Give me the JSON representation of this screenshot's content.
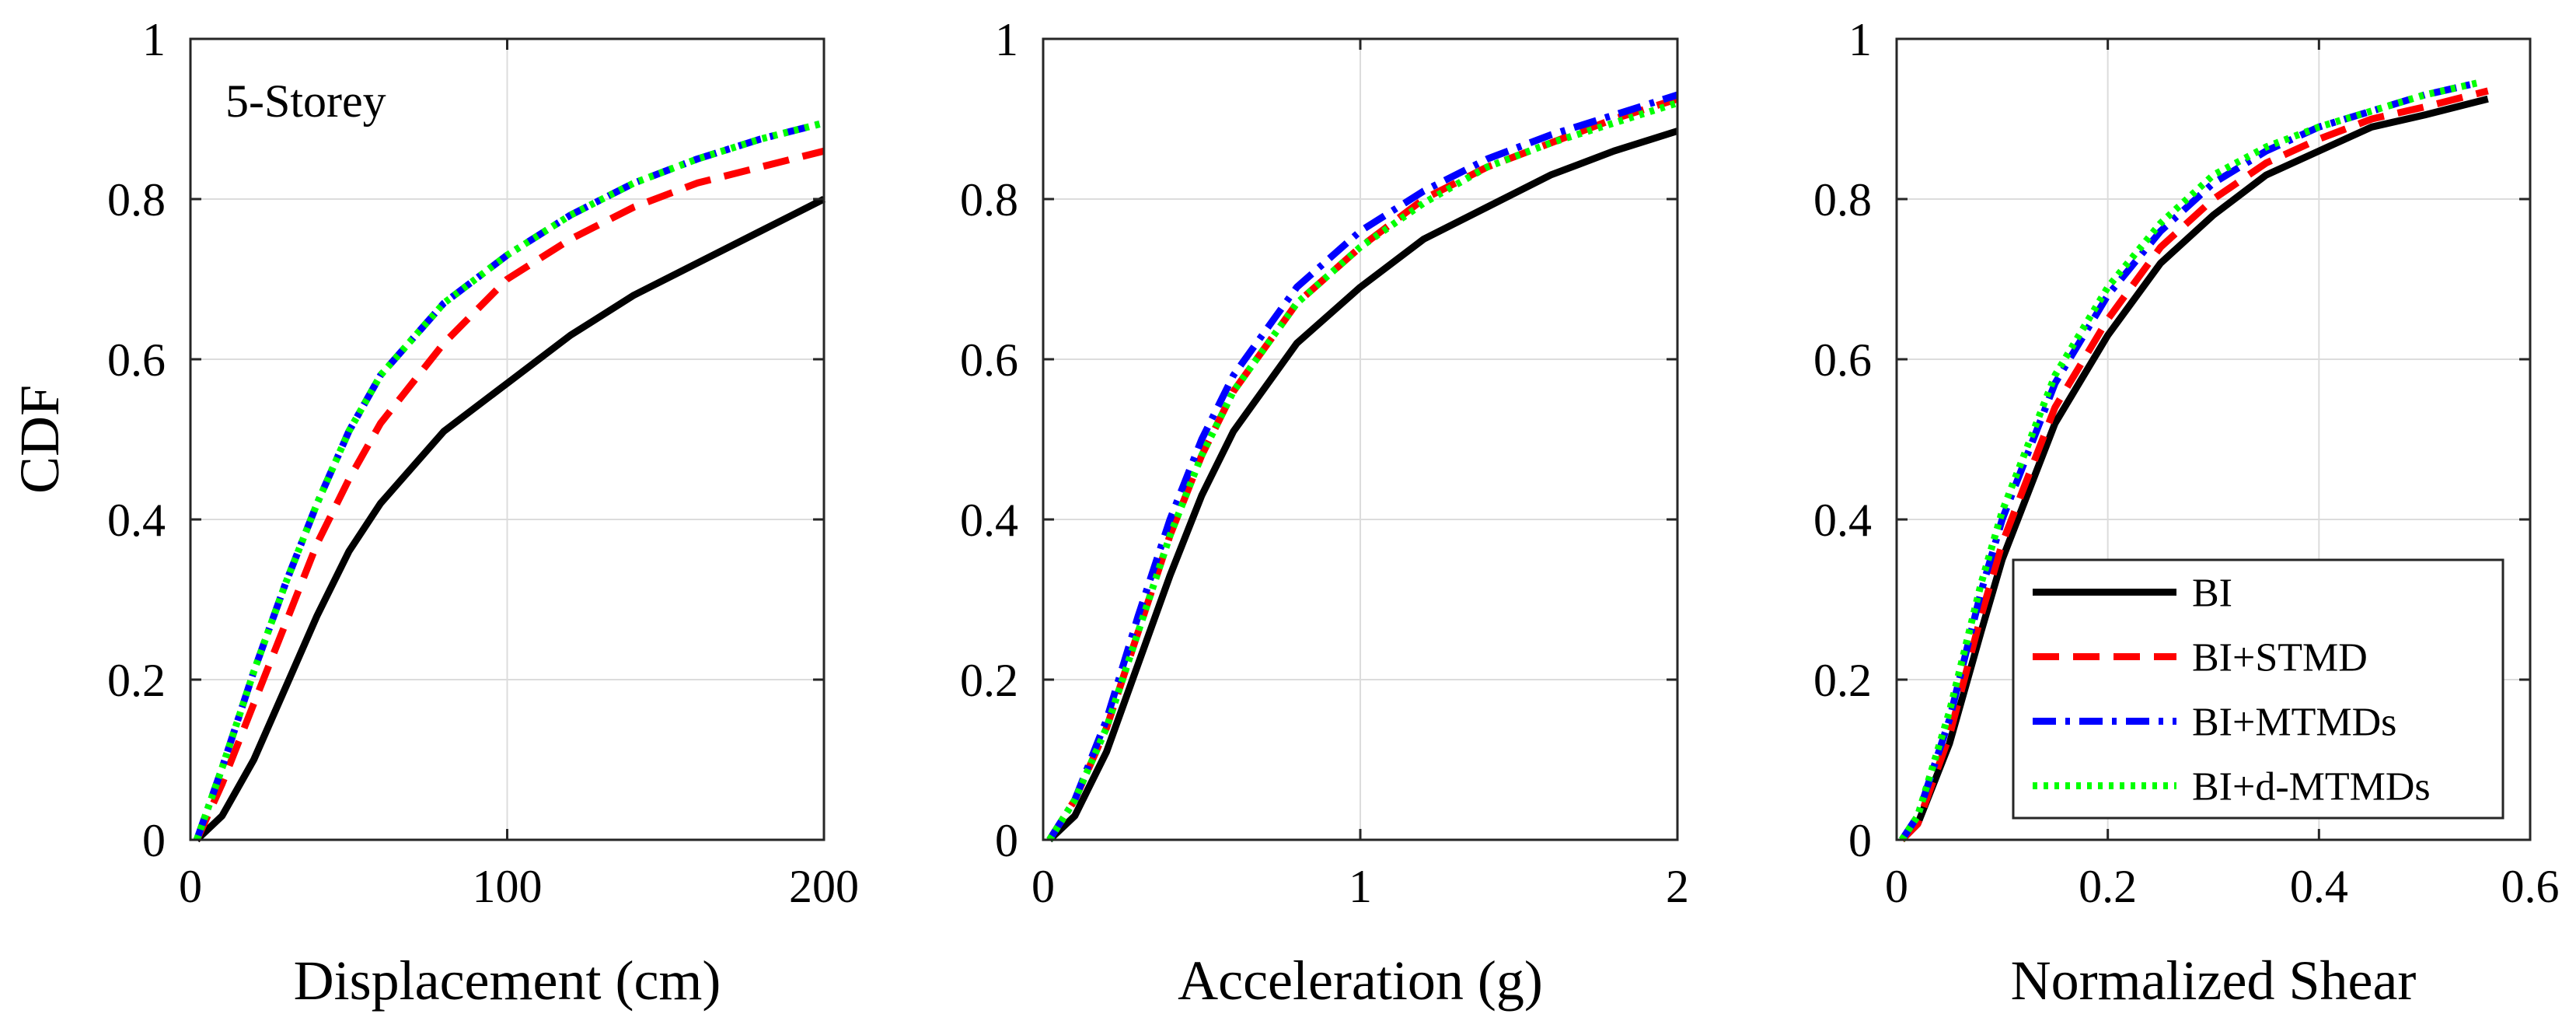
{
  "chart_data": [
    {
      "type": "line",
      "xlabel": "Displacement (cm)",
      "ylabel": "CDF",
      "annotation": "5-Storey",
      "xlim": [
        0,
        200
      ],
      "ylim": [
        0,
        1
      ],
      "xticks": [
        0,
        100,
        200
      ],
      "xtick_labels": [
        "0",
        "100",
        "200"
      ],
      "yticks": [
        0,
        0.2,
        0.4,
        0.6,
        0.8,
        1
      ],
      "ytick_labels": [
        "0",
        "0.2",
        "0.4",
        "0.6",
        "0.8",
        "1"
      ],
      "grid": true,
      "series": [
        {
          "name": "BI",
          "color": "#000000",
          "style": "solid",
          "x": [
            2,
            10,
            20,
            30,
            40,
            50,
            60,
            80,
            100,
            120,
            140,
            160,
            180,
            200
          ],
          "y": [
            0,
            0.03,
            0.1,
            0.19,
            0.28,
            0.36,
            0.42,
            0.51,
            0.57,
            0.63,
            0.68,
            0.72,
            0.76,
            0.8
          ]
        },
        {
          "name": "BI+STMD",
          "color": "#ff0000",
          "style": "dashed",
          "x": [
            2,
            10,
            20,
            30,
            40,
            50,
            60,
            80,
            100,
            120,
            140,
            160,
            180,
            200
          ],
          "y": [
            0,
            0.07,
            0.17,
            0.27,
            0.37,
            0.45,
            0.52,
            0.62,
            0.7,
            0.75,
            0.79,
            0.82,
            0.84,
            0.86
          ]
        },
        {
          "name": "BI+MTMDs",
          "color": "#0000ff",
          "style": "dashdot",
          "x": [
            2,
            10,
            20,
            30,
            40,
            50,
            60,
            80,
            100,
            120,
            140,
            160,
            180,
            200
          ],
          "y": [
            0,
            0.09,
            0.21,
            0.32,
            0.42,
            0.51,
            0.58,
            0.67,
            0.73,
            0.78,
            0.82,
            0.85,
            0.875,
            0.895
          ]
        },
        {
          "name": "BI+d-MTMDs",
          "color": "#00ff00",
          "style": "dotted",
          "x": [
            2,
            10,
            20,
            30,
            40,
            50,
            60,
            80,
            100,
            120,
            140,
            160,
            180,
            200
          ],
          "y": [
            0,
            0.09,
            0.21,
            0.32,
            0.42,
            0.51,
            0.58,
            0.67,
            0.73,
            0.78,
            0.82,
            0.85,
            0.875,
            0.895
          ]
        }
      ]
    },
    {
      "type": "line",
      "xlabel": "Acceleration (g)",
      "ylabel": "",
      "xlim": [
        0,
        2
      ],
      "ylim": [
        0,
        1
      ],
      "xticks": [
        0,
        1,
        2
      ],
      "xtick_labels": [
        "0",
        "1",
        "2"
      ],
      "yticks": [
        0,
        0.2,
        0.4,
        0.6,
        0.8,
        1
      ],
      "ytick_labels": [
        "0",
        "0.2",
        "0.4",
        "0.6",
        "0.8",
        "1"
      ],
      "grid": true,
      "series": [
        {
          "name": "BI",
          "color": "#000000",
          "style": "solid",
          "x": [
            0.02,
            0.1,
            0.2,
            0.3,
            0.4,
            0.5,
            0.6,
            0.8,
            1.0,
            1.2,
            1.4,
            1.6,
            1.8,
            2.0
          ],
          "y": [
            0,
            0.03,
            0.11,
            0.22,
            0.33,
            0.43,
            0.51,
            0.62,
            0.69,
            0.75,
            0.79,
            0.83,
            0.86,
            0.885
          ]
        },
        {
          "name": "BI+STMD",
          "color": "#ff0000",
          "style": "dashed",
          "x": [
            0.02,
            0.1,
            0.2,
            0.3,
            0.4,
            0.5,
            0.6,
            0.8,
            1.0,
            1.2,
            1.4,
            1.6,
            1.8,
            2.0
          ],
          "y": [
            0,
            0.05,
            0.14,
            0.26,
            0.38,
            0.48,
            0.56,
            0.67,
            0.74,
            0.8,
            0.84,
            0.87,
            0.9,
            0.925
          ]
        },
        {
          "name": "BI+MTMDs",
          "color": "#0000ff",
          "style": "dashdot",
          "x": [
            0.02,
            0.1,
            0.2,
            0.3,
            0.4,
            0.5,
            0.6,
            0.8,
            1.0,
            1.2,
            1.4,
            1.6,
            1.8,
            2.0
          ],
          "y": [
            0,
            0.05,
            0.15,
            0.28,
            0.4,
            0.5,
            0.58,
            0.69,
            0.76,
            0.81,
            0.85,
            0.88,
            0.905,
            0.93
          ]
        },
        {
          "name": "BI+d-MTMDs",
          "color": "#00ff00",
          "style": "dotted",
          "x": [
            0.02,
            0.1,
            0.2,
            0.3,
            0.4,
            0.5,
            0.6,
            0.8,
            1.0,
            1.2,
            1.4,
            1.6,
            1.8,
            2.0
          ],
          "y": [
            0,
            0.05,
            0.14,
            0.26,
            0.38,
            0.48,
            0.56,
            0.67,
            0.74,
            0.795,
            0.84,
            0.87,
            0.895,
            0.92
          ]
        }
      ]
    },
    {
      "type": "line",
      "xlabel": "Normalized Shear",
      "ylabel": "",
      "xlim": [
        0,
        0.6
      ],
      "ylim": [
        0,
        1
      ],
      "xticks": [
        0,
        0.2,
        0.4,
        0.6
      ],
      "xtick_labels": [
        "0",
        "0.2",
        "0.4",
        "0.6"
      ],
      "yticks": [
        0,
        0.2,
        0.4,
        0.6,
        0.8,
        1
      ],
      "ytick_labels": [
        "0",
        "0.2",
        "0.4",
        "0.6",
        "0.8",
        "1"
      ],
      "grid": true,
      "series": [
        {
          "name": "BI",
          "color": "#000000",
          "style": "solid",
          "x": [
            0.005,
            0.02,
            0.05,
            0.08,
            0.1,
            0.15,
            0.2,
            0.25,
            0.3,
            0.35,
            0.4,
            0.45,
            0.5,
            0.56
          ],
          "y": [
            0,
            0.02,
            0.12,
            0.26,
            0.35,
            0.52,
            0.63,
            0.72,
            0.78,
            0.83,
            0.86,
            0.89,
            0.905,
            0.925
          ]
        },
        {
          "name": "BI+STMD",
          "color": "#ff0000",
          "style": "dashed",
          "x": [
            0.005,
            0.02,
            0.05,
            0.08,
            0.1,
            0.15,
            0.2,
            0.25,
            0.3,
            0.35,
            0.4,
            0.45,
            0.5,
            0.56
          ],
          "y": [
            0,
            0.02,
            0.13,
            0.28,
            0.37,
            0.54,
            0.65,
            0.74,
            0.8,
            0.845,
            0.875,
            0.9,
            0.915,
            0.935
          ]
        },
        {
          "name": "BI+MTMDs",
          "color": "#0000ff",
          "style": "dashdot",
          "x": [
            0.005,
            0.02,
            0.05,
            0.08,
            0.1,
            0.15,
            0.2,
            0.25,
            0.3,
            0.35,
            0.4,
            0.45,
            0.5,
            0.55
          ],
          "y": [
            0,
            0.03,
            0.15,
            0.31,
            0.4,
            0.57,
            0.68,
            0.76,
            0.82,
            0.86,
            0.89,
            0.91,
            0.93,
            0.945
          ]
        },
        {
          "name": "BI+d-MTMDs",
          "color": "#00ff00",
          "style": "dotted",
          "x": [
            0.005,
            0.02,
            0.05,
            0.08,
            0.1,
            0.15,
            0.2,
            0.25,
            0.3,
            0.35,
            0.4,
            0.45,
            0.5,
            0.55
          ],
          "y": [
            0,
            0.03,
            0.16,
            0.32,
            0.41,
            0.58,
            0.69,
            0.77,
            0.83,
            0.865,
            0.89,
            0.91,
            0.93,
            0.945
          ]
        }
      ]
    }
  ],
  "legend": {
    "location": "bottom-right of third panel",
    "entries": [
      {
        "label": "BI",
        "color": "#000000",
        "style": "solid"
      },
      {
        "label": "BI+STMD",
        "color": "#ff0000",
        "style": "dashed"
      },
      {
        "label": "BI+MTMDs",
        "color": "#0000ff",
        "style": "dashdot"
      },
      {
        "label": "BI+d-MTMDs",
        "color": "#00ff00",
        "style": "dotted"
      }
    ]
  }
}
